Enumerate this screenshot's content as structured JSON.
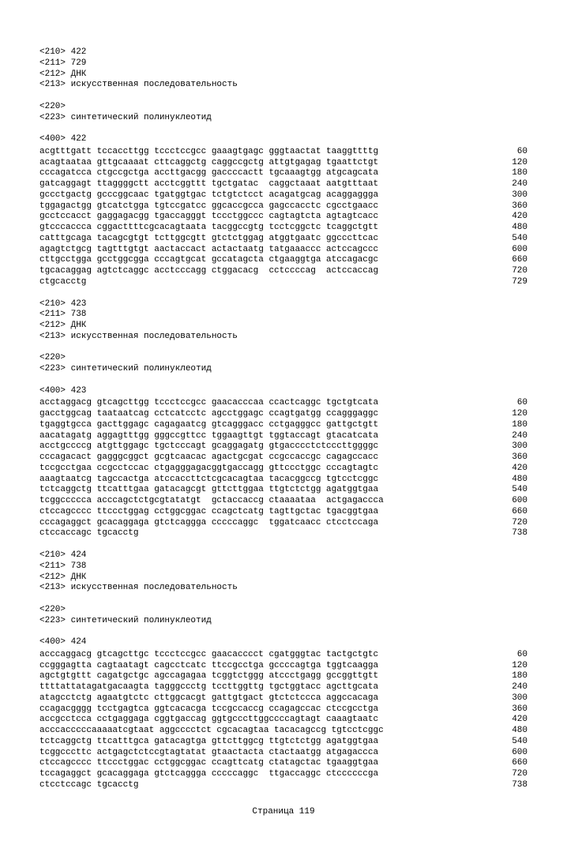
{
  "entries": [
    {
      "headers": [
        "<210> 422",
        "<211> 729",
        "<212> ДНК",
        "<213> искусственная последовательность",
        "",
        "<220>",
        "<223> синтетический полинуклеотид",
        "",
        "<400> 422"
      ],
      "sequence_rows": [
        {
          "cols": [
            "acgtttgatt",
            "tccaccttgg",
            "tccctccgcc",
            "gaaagtgagc",
            "gggtaactat",
            "taaggttttg"
          ],
          "pos": "60"
        },
        {
          "cols": [
            "acagtaataa",
            "gttgcaaaat",
            "cttcaggctg",
            "caggccgctg",
            "attgtgagag",
            "tgaattctgt"
          ],
          "pos": "120"
        },
        {
          "cols": [
            "cccagatcca",
            "ctgccgctga",
            "accttgacgg",
            "gaccccactt",
            "tgcaaagtgg",
            "atgcagcata"
          ],
          "pos": "180"
        },
        {
          "cols": [
            "gatcaggagt",
            "ttaggggctt",
            "acctcggttt",
            "tgctgatac",
            "caggctaaat",
            "aatgtttaat"
          ],
          "pos": "240"
        },
        {
          "cols": [
            "gccctgactg",
            "gcccggcaac",
            "tgatggtgac",
            "tctgtctcct",
            "acagatgcag",
            "acaggaggga"
          ],
          "pos": "300"
        },
        {
          "cols": [
            "tggagactgg",
            "gtcatctgga",
            "tgtccgatcc",
            "ggcaccgcca",
            "gagccacctc",
            "cgcctgaacc"
          ],
          "pos": "360"
        },
        {
          "cols": [
            "gcctccacct",
            "gaggagacgg",
            "tgaccagggt",
            "tccctggccc",
            "cagtagtcta",
            "agtagtcacc"
          ],
          "pos": "420"
        },
        {
          "cols": [
            "gtcccaccca",
            "cggacttttcg",
            "cacagtaata",
            "tacggccgtg",
            "tcctcggctc",
            "tcaggctgtt"
          ],
          "pos": "480"
        },
        {
          "cols": [
            "catttgcaga",
            "tacagcgtgt",
            "tcttggcgtt",
            "gtctctggag",
            "atggtgaatc",
            "ggcccttcac"
          ],
          "pos": "540"
        },
        {
          "cols": [
            "agagtctgcg",
            "tagtttgtgt",
            "aactaccact",
            "actactaatg",
            "tatgaaaccc",
            "actccagccc"
          ],
          "pos": "600"
        },
        {
          "cols": [
            "cttgcctgga",
            "gcctggcgga",
            "cccagtgcat",
            "gccatagcta",
            "ctgaaggtga",
            "atccagacgc"
          ],
          "pos": "660"
        },
        {
          "cols": [
            "tgcacaggag",
            "agtctcaggc",
            "acctcccagg",
            "ctggacacg",
            "cctccccag",
            "actccaccag"
          ],
          "pos": "720"
        },
        {
          "cols": [
            "ctgcacctg",
            "",
            "",
            "",
            "",
            ""
          ],
          "pos": "729"
        }
      ]
    },
    {
      "headers": [
        "<210> 423",
        "<211> 738",
        "<212> ДНК",
        "<213> искусственная последовательность",
        "",
        "<220>",
        "<223> синтетический полинуклеотид",
        "",
        "<400> 423"
      ],
      "sequence_rows": [
        {
          "cols": [
            "acctaggacg",
            "gtcagcttgg",
            "tccctccgcc",
            "gaacacccaa",
            "ccactcaggc",
            "tgctgtcata"
          ],
          "pos": "60"
        },
        {
          "cols": [
            "gacctggcag",
            "taataatcag",
            "cctcatcctc",
            "agcctggagc",
            "ccagtgatgg",
            "ccagggaggc"
          ],
          "pos": "120"
        },
        {
          "cols": [
            "tgaggtgcca",
            "gacttggagc",
            "cagagaatcg",
            "gtcagggacc",
            "cctgagggcc",
            "gattgctgtt"
          ],
          "pos": "180"
        },
        {
          "cols": [
            "aacatagatg",
            "aggagtttgg",
            "gggccgttcc",
            "tggaagttgt",
            "tggtaccagt",
            "gtacatcata"
          ],
          "pos": "240"
        },
        {
          "cols": [
            "acctgccccg",
            "atgttggagc",
            "tgctcccagt",
            "gcaggagatg",
            "gtgacccctct",
            "cccttggggc"
          ],
          "pos": "300"
        },
        {
          "cols": [
            "cccagacact",
            "gagggcggct",
            "gcgtcaacac",
            "agactgcgat",
            "ccgccaccgc",
            "cagagccacc"
          ],
          "pos": "360"
        },
        {
          "cols": [
            "tccgcctgaa",
            "ccgcctccac",
            "ctgagggagac",
            "ggtgaccagg",
            "gttccctggc",
            "cccagtagtc"
          ],
          "pos": "420"
        },
        {
          "cols": [
            "aaagtaatcg",
            "tagccactga",
            "atccaccttct",
            "cgcacagtaa",
            "tacacggccg",
            "tgtcctcggc"
          ],
          "pos": "480"
        },
        {
          "cols": [
            "tctcaggctg",
            "ttcatttgaa",
            "gatacagcgt",
            "gttcttggaa",
            "ttgtctctgg",
            "agatggtgaa"
          ],
          "pos": "540"
        },
        {
          "cols": [
            "tcggccccca",
            "acccagctctg",
            "cgtatatgt",
            "gctaccaccg",
            "ctaaaataa",
            "actgagaccca"
          ],
          "pos": "600"
        },
        {
          "cols": [
            "ctccagcccc",
            "ttccctggag",
            "cctggcggac",
            "ccagctcatg",
            "tagttgctac",
            "tgacggtgaa"
          ],
          "pos": "660"
        },
        {
          "cols": [
            "cccagaggct",
            "gcacaggaga",
            "gtctcaggga",
            "cccccaggc",
            "tggatcaacc",
            "ctcctccaga"
          ],
          "pos": "720"
        },
        {
          "cols": [
            "ctccaccagc",
            "tgcacctg",
            "",
            "",
            "",
            ""
          ],
          "pos": "738"
        }
      ]
    },
    {
      "headers": [
        "<210> 424",
        "<211> 738",
        "<212> ДНК",
        "<213> искусственная последовательность",
        "",
        "<220>",
        "<223> синтетический полинуклеотид",
        "",
        "<400> 424"
      ],
      "sequence_rows": [
        {
          "cols": [
            "acccaggacg",
            "gtcagcttgc",
            "tccctccgcc",
            "gaacacccct",
            "cgatgggtac",
            "tactgctgtc"
          ],
          "pos": "60"
        },
        {
          "cols": [
            "ccgggagtta",
            "cagtaatagt",
            "cagcctcatc",
            "ttccgcctga",
            "gccccagtga",
            "tggtcaagga"
          ],
          "pos": "120"
        },
        {
          "cols": [
            "agctgtgttt",
            "cagatgctgc",
            "agccagagaa",
            "tcggtctggg",
            "atccctgagg",
            "gccggttgtt"
          ],
          "pos": "180"
        },
        {
          "cols": [
            "ttttattatag",
            "atgacaagta",
            "tagggccctg",
            "tccttggttg",
            "tgctggtacc",
            "agcttgcata"
          ],
          "pos": "240"
        },
        {
          "cols": [
            "atagcctctg",
            "agaatgtctc",
            "cttggcacgt",
            "gattgtgact",
            "gtctctccca",
            "aggccacaga"
          ],
          "pos": "300"
        },
        {
          "cols": [
            "ccagacgggg",
            "tcctgagtca",
            "ggtcacacga",
            "tccgccaccg",
            "ccagagccac",
            "ctccgcctga"
          ],
          "pos": "360"
        },
        {
          "cols": [
            "accgcctcca",
            "cctgaggaga",
            "cggtgaccag",
            "ggtgcccttgg",
            "ccccagtagt",
            "caaagtaatc"
          ],
          "pos": "420"
        },
        {
          "cols": [
            "acccacccccaa",
            "aaatcgtaat",
            "aggcccctct",
            "cgcacagtaa",
            "tacacagccg",
            "tgtcctcggc"
          ],
          "pos": "480"
        },
        {
          "cols": [
            "tctcaggctg",
            "ttcatttgca",
            "gatacagtga",
            "gttcttggcg",
            "ttgtctctgg",
            "agatggtgaa"
          ],
          "pos": "540"
        },
        {
          "cols": [
            "tcggcccttc",
            "actgagctctc",
            "cgtagtatat",
            "gtaactacta",
            "ctactaatgg",
            "atgagaccca"
          ],
          "pos": "600"
        },
        {
          "cols": [
            "ctccagcccc",
            "ttccctggac",
            "cctggcggac",
            "ccagttcatg",
            "ctatagctac",
            "tgaaggtgaa"
          ],
          "pos": "660"
        },
        {
          "cols": [
            "tccagaggct",
            "gcacaggaga",
            "gtctcaggga",
            "cccccaggc",
            "ttgaccaggc",
            "ctccccccga"
          ],
          "pos": "720"
        },
        {
          "cols": [
            "ctcctccagc",
            "tgcacctg",
            "",
            "",
            "",
            ""
          ],
          "pos": "738"
        }
      ]
    }
  ],
  "page_label": "Страница 119"
}
